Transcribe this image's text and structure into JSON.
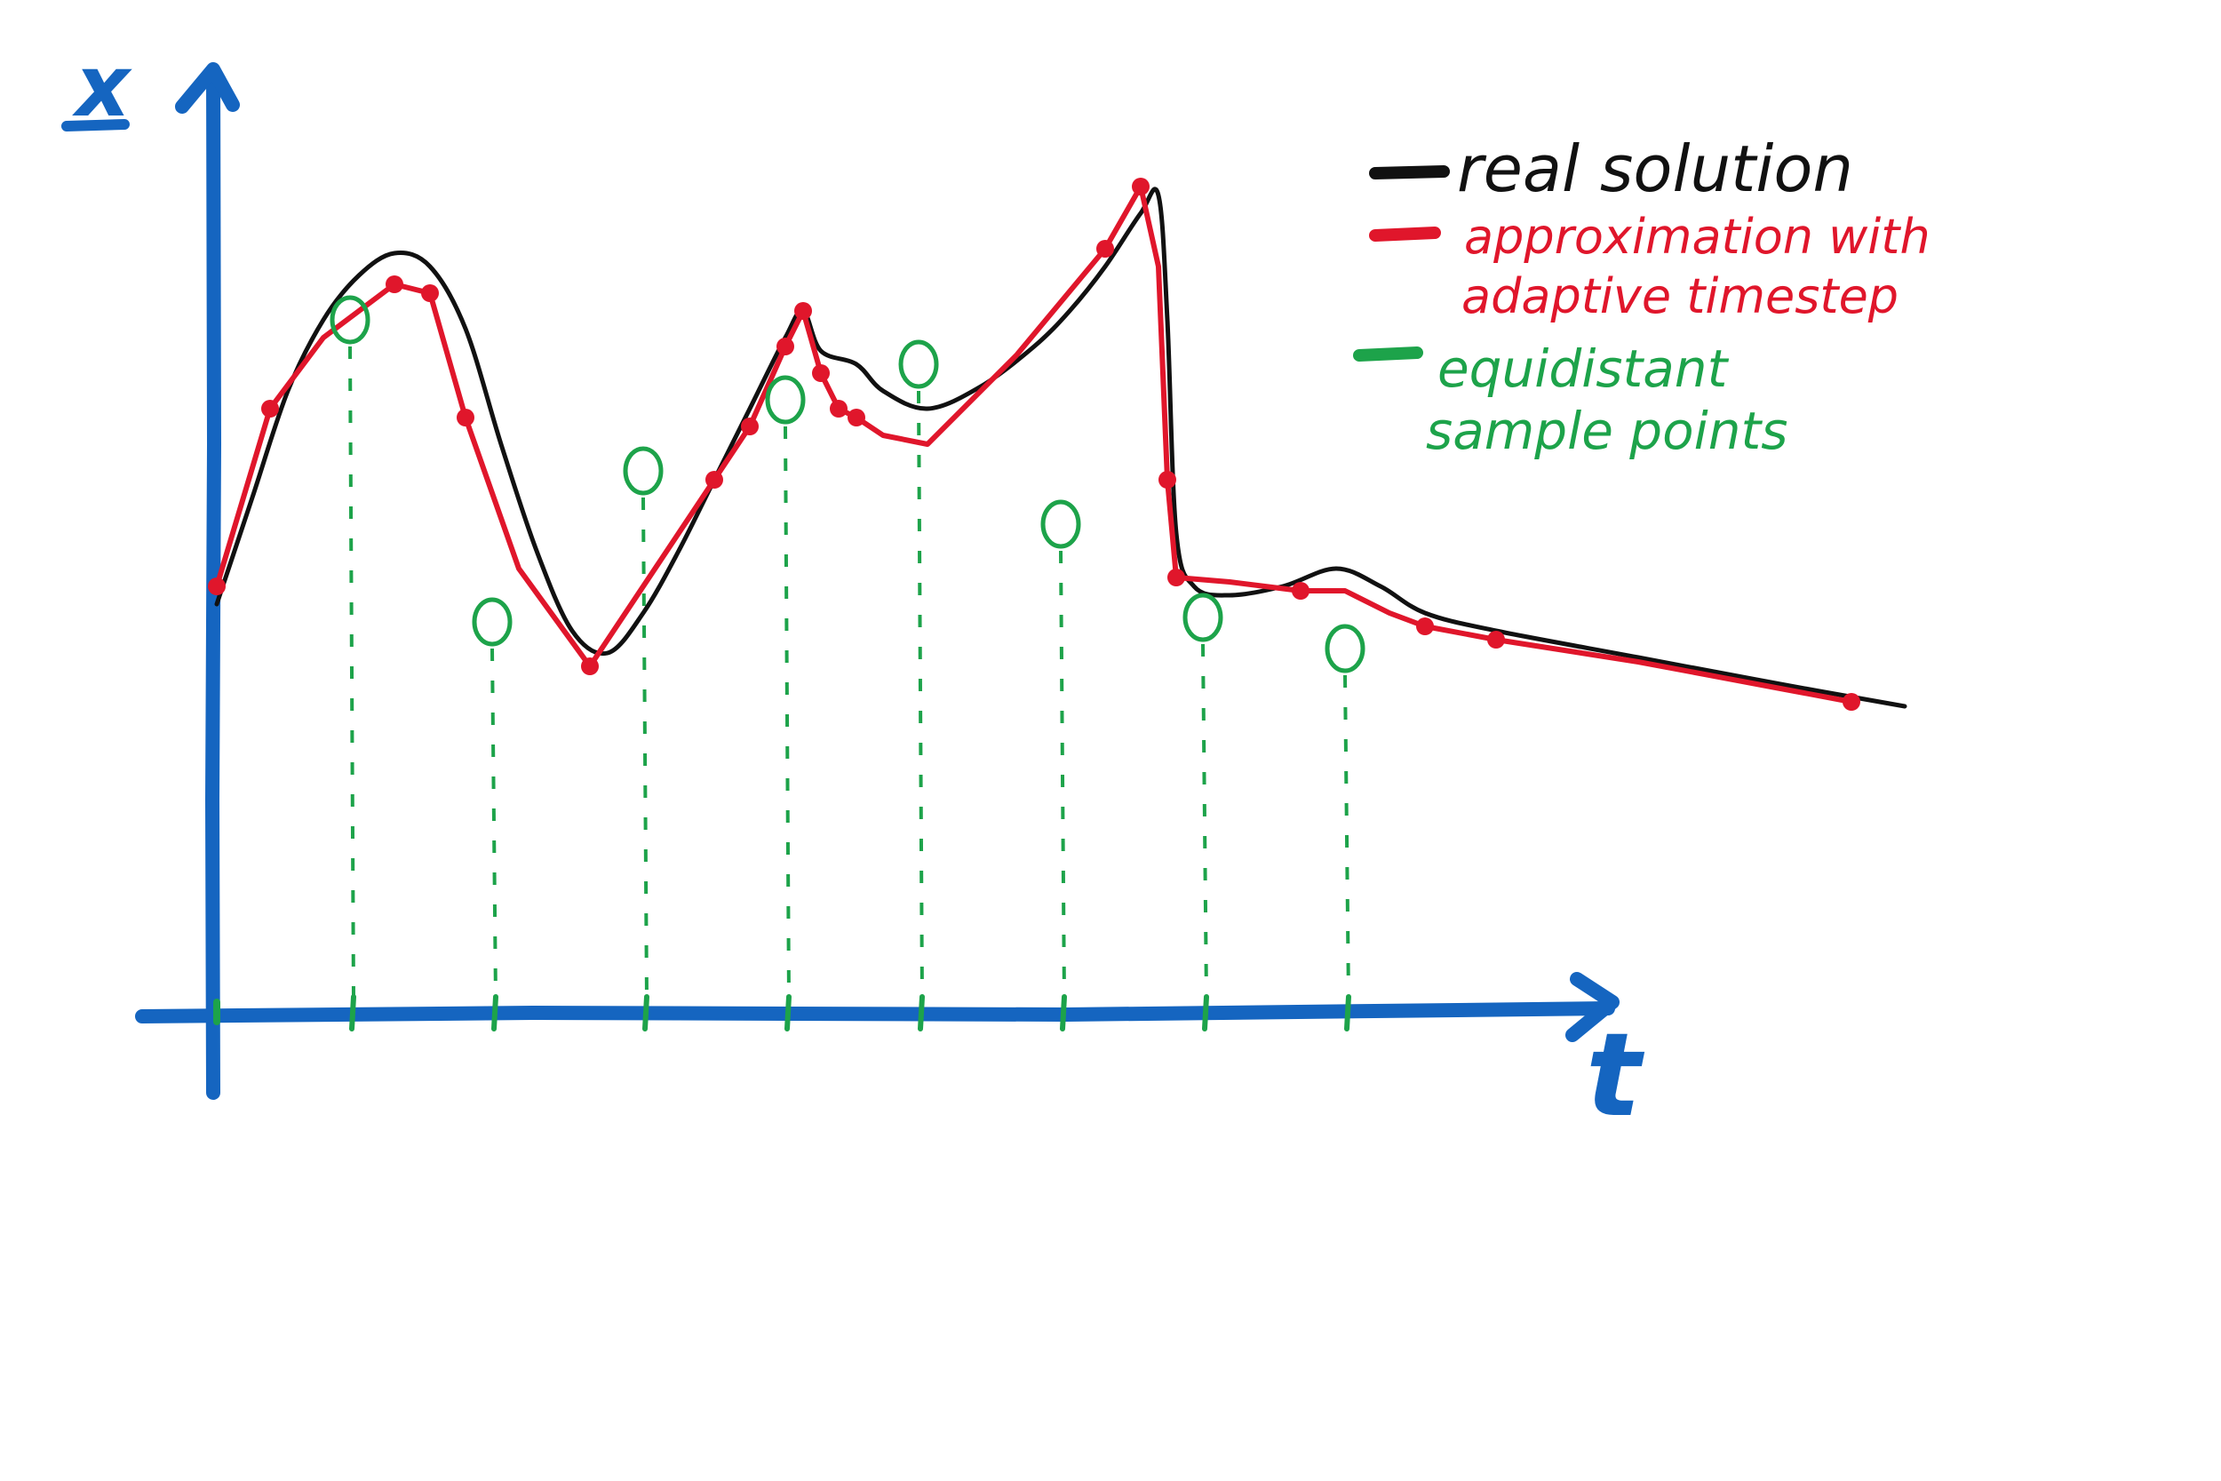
{
  "axes": {
    "y_label": "x",
    "x_label": "t",
    "color": "#1565C0"
  },
  "legend": {
    "items": [
      {
        "id": "real",
        "lines": [
          "real solution"
        ],
        "color": "#111111"
      },
      {
        "id": "adaptive",
        "lines": [
          "approximation with",
          "adaptive timestep"
        ],
        "color": "#E0162B"
      },
      {
        "id": "equidistant",
        "lines": [
          "equidistant",
          "sample points"
        ],
        "color": "#1DA34A"
      }
    ]
  },
  "colors": {
    "real": "#111111",
    "adaptive": "#E0162B",
    "equidistant": "#1DA34A",
    "background": "#FFFFFF"
  },
  "series_shape": {
    "real": [
      [
        0,
        46
      ],
      [
        4,
        58
      ],
      [
        8,
        70
      ],
      [
        12,
        78
      ],
      [
        16,
        83
      ],
      [
        20,
        85.5
      ],
      [
        24,
        84
      ],
      [
        28,
        77
      ],
      [
        32,
        64
      ],
      [
        36,
        52
      ],
      [
        40,
        43
      ],
      [
        44,
        40.5
      ],
      [
        48,
        45
      ],
      [
        52,
        52
      ],
      [
        56,
        60
      ],
      [
        60,
        68
      ],
      [
        64,
        76
      ],
      [
        66,
        79
      ],
      [
        68,
        74.5
      ],
      [
        72,
        73
      ],
      [
        75,
        70
      ],
      [
        80,
        68
      ],
      [
        86,
        70.5
      ],
      [
        92,
        75
      ],
      [
        96,
        79
      ],
      [
        100,
        84
      ],
      [
        104,
        90
      ],
      [
        106,
        92
      ],
      [
        107,
        78
      ],
      [
        108,
        54
      ],
      [
        110,
        48
      ],
      [
        114,
        47
      ],
      [
        120,
        48
      ],
      [
        126,
        50
      ],
      [
        131,
        48
      ],
      [
        136,
        45
      ],
      [
        144,
        43
      ],
      [
        160,
        40
      ],
      [
        176,
        37
      ],
      [
        190,
        34.5
      ]
    ],
    "adaptive": [
      [
        0,
        48
      ],
      [
        6,
        68
      ],
      [
        12,
        76
      ],
      [
        20,
        82
      ],
      [
        24,
        81
      ],
      [
        28,
        67
      ],
      [
        34,
        50
      ],
      [
        42,
        39
      ],
      [
        50,
        51
      ],
      [
        56,
        60
      ],
      [
        60,
        66
      ],
      [
        64,
        75
      ],
      [
        66,
        79
      ],
      [
        68,
        72
      ],
      [
        70,
        68
      ],
      [
        72,
        67
      ],
      [
        75,
        65
      ],
      [
        80,
        64
      ],
      [
        86,
        70
      ],
      [
        90,
        74
      ],
      [
        95,
        80
      ],
      [
        100,
        86
      ],
      [
        104,
        93
      ],
      [
        106,
        84
      ],
      [
        107,
        60
      ],
      [
        108,
        49
      ],
      [
        114,
        48.5
      ],
      [
        122,
        47.5
      ],
      [
        127,
        47.5
      ],
      [
        132,
        45
      ],
      [
        136,
        43.5
      ],
      [
        144,
        42
      ],
      [
        160,
        39.5
      ],
      [
        176,
        36.5
      ],
      [
        184,
        35
      ]
    ],
    "adaptive_points": [
      [
        0,
        48
      ],
      [
        6,
        68
      ],
      [
        20,
        82
      ],
      [
        24,
        81
      ],
      [
        28,
        67
      ],
      [
        42,
        39
      ],
      [
        56,
        60
      ],
      [
        60,
        66
      ],
      [
        64,
        75
      ],
      [
        66,
        79
      ],
      [
        68,
        72
      ],
      [
        70,
        68
      ],
      [
        72,
        67
      ],
      [
        100,
        86
      ],
      [
        104,
        93
      ],
      [
        107,
        60
      ],
      [
        108,
        49
      ],
      [
        122,
        47.5
      ],
      [
        136,
        43.5
      ],
      [
        144,
        42
      ],
      [
        184,
        35
      ]
    ],
    "equidistant_points": [
      [
        15,
        78
      ],
      [
        31,
        44
      ],
      [
        48,
        61
      ],
      [
        64,
        69
      ],
      [
        79,
        73
      ],
      [
        95,
        55
      ],
      [
        111,
        44.5
      ],
      [
        127,
        41
      ]
    ]
  }
}
